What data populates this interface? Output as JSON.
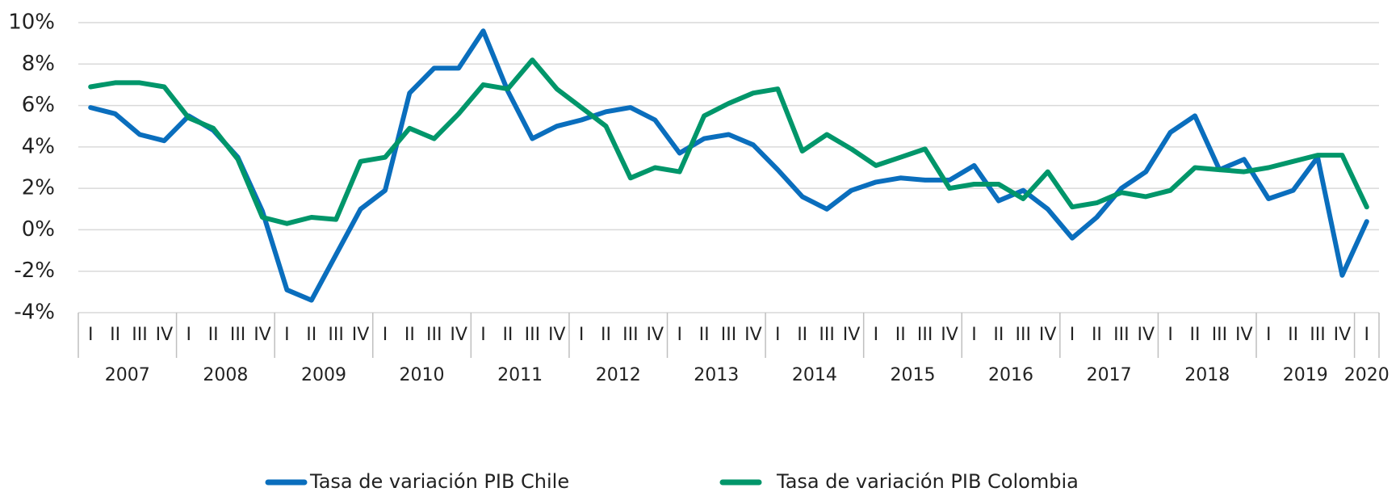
{
  "chart_data": {
    "type": "line",
    "categories": [
      "I",
      "II",
      "III",
      "IV",
      "I",
      "II",
      "III",
      "IV",
      "I",
      "II",
      "III",
      "IV",
      "I",
      "II",
      "III",
      "IV",
      "I",
      "II",
      "III",
      "IV",
      "I",
      "II",
      "III",
      "IV",
      "I",
      "II",
      "III",
      "IV",
      "I",
      "II",
      "III",
      "IV",
      "I",
      "II",
      "III",
      "IV",
      "I",
      "II",
      "III",
      "IV",
      "I",
      "II",
      "III",
      "IV",
      "I",
      "II",
      "III",
      "IV",
      "I",
      "II",
      "III",
      "IV",
      "I"
    ],
    "years": [
      "2007",
      "2008",
      "2009",
      "2010",
      "2011",
      "2012",
      "2013",
      "2014",
      "2015",
      "2016",
      "2017",
      "2018",
      "2019",
      "2020"
    ],
    "series": [
      {
        "name": "Tasa de variación PIB Chile",
        "color": "#0a6ebd",
        "values": [
          5.9,
          5.6,
          4.6,
          4.3,
          5.5,
          4.8,
          3.5,
          0.9,
          -2.9,
          -3.4,
          -1.2,
          1.0,
          1.9,
          6.6,
          7.8,
          7.8,
          9.6,
          6.7,
          4.4,
          5.0,
          5.3,
          5.7,
          5.9,
          5.3,
          3.7,
          4.4,
          4.6,
          4.1,
          2.9,
          1.6,
          1.0,
          1.9,
          2.3,
          2.5,
          2.4,
          2.4,
          3.1,
          1.4,
          1.9,
          1.0,
          -0.4,
          0.6,
          2.0,
          2.8,
          4.7,
          5.5,
          2.9,
          3.4,
          1.5,
          1.9,
          3.5,
          -2.2,
          0.4
        ]
      },
      {
        "name": "Tasa de variación PIB Colombia",
        "color": "#00966a",
        "values": [
          6.9,
          7.1,
          7.1,
          6.9,
          5.4,
          4.9,
          3.4,
          0.6,
          0.3,
          0.6,
          0.5,
          3.3,
          3.5,
          4.9,
          4.4,
          5.6,
          7.0,
          6.8,
          8.2,
          6.8,
          5.9,
          5.0,
          2.5,
          3.0,
          2.8,
          5.5,
          6.1,
          6.6,
          6.8,
          3.8,
          4.6,
          3.9,
          3.1,
          3.5,
          3.9,
          2.0,
          2.2,
          2.2,
          1.5,
          2.8,
          1.1,
          1.3,
          1.8,
          1.6,
          1.9,
          3.0,
          2.9,
          2.8,
          3.0,
          3.3,
          3.6,
          3.6,
          1.1
        ]
      }
    ],
    "ylim": [
      -4,
      10
    ],
    "yticks": [
      {
        "value": -4,
        "label": "-4%"
      },
      {
        "value": -2,
        "label": "-2%"
      },
      {
        "value": 0,
        "label": "0%"
      },
      {
        "value": 2,
        "label": "2%"
      },
      {
        "value": 4,
        "label": "4%"
      },
      {
        "value": 6,
        "label": "6%"
      },
      {
        "value": 8,
        "label": "8%"
      },
      {
        "value": 10,
        "label": "10%"
      }
    ],
    "grid": true
  }
}
